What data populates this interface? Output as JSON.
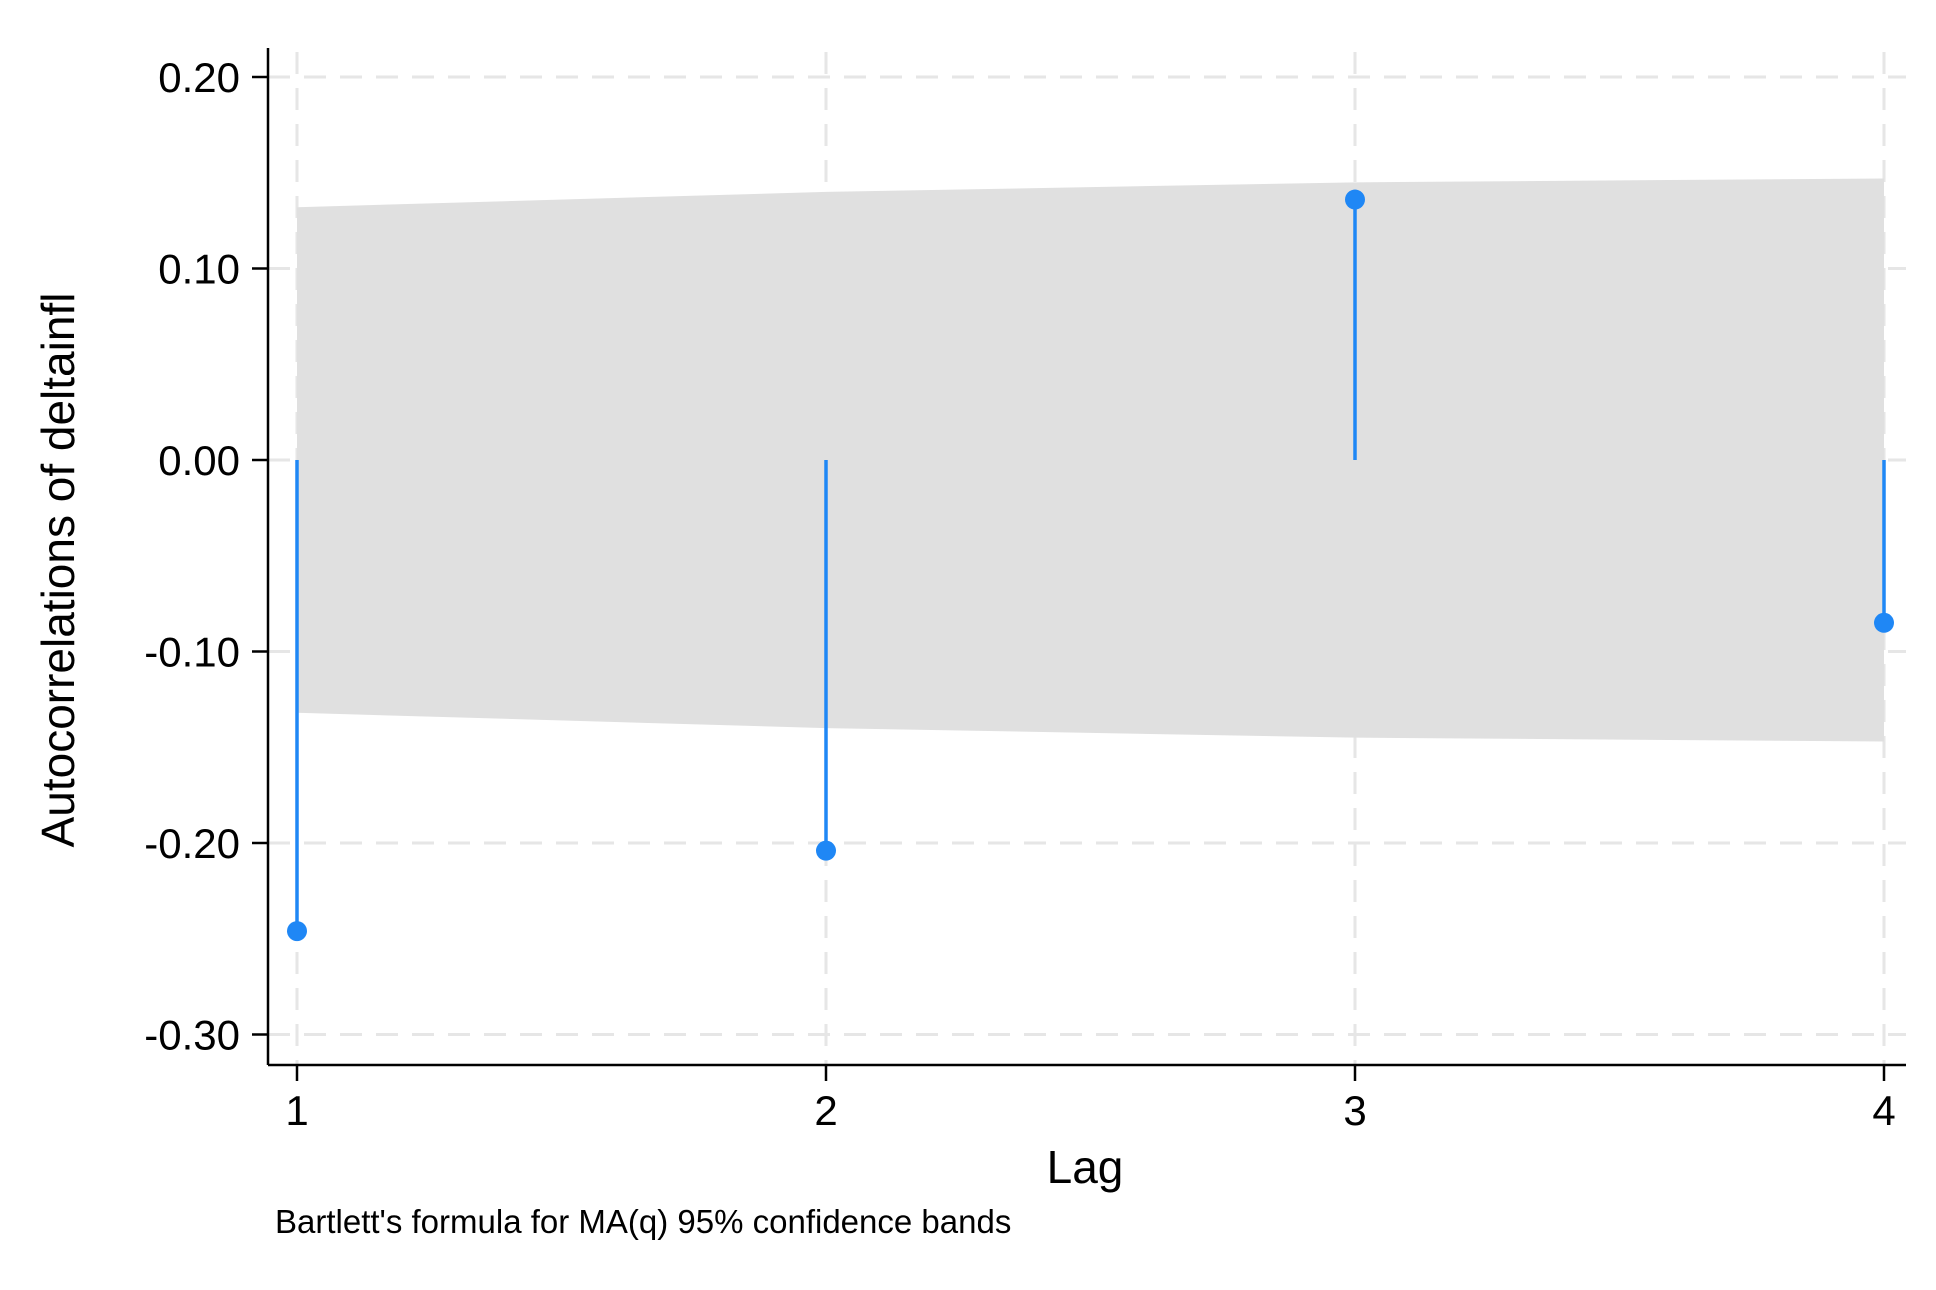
{
  "chart_data": {
    "type": "scatter",
    "style": "stem",
    "xlabel": "Lag",
    "ylabel": "Autocorrelations of deltainfl",
    "note": "Bartlett's formula for MA(q) 95% confidence bands",
    "xlim": [
      1,
      4
    ],
    "ylim": [
      -0.315,
      0.215
    ],
    "x_ticks": [
      1,
      2,
      3,
      4
    ],
    "y_ticks": [
      0.2,
      0.1,
      0.0,
      -0.1,
      -0.2,
      -0.3
    ],
    "y_tick_labels": [
      "0.20",
      "0.10",
      "0.00",
      "-0.10",
      "-0.20",
      "-0.30"
    ],
    "grid": true,
    "series": [
      {
        "x": [
          1,
          2,
          3,
          4
        ],
        "values": [
          -0.246,
          -0.204,
          0.136,
          -0.085
        ]
      }
    ],
    "confidence_band": {
      "x": [
        1,
        2,
        3,
        4
      ],
      "upper": [
        0.132,
        0.14,
        0.145,
        0.147
      ],
      "lower": [
        -0.132,
        -0.14,
        -0.145,
        -0.147
      ]
    },
    "colors": {
      "band": "#e0e0e0",
      "series": "#1f87f5",
      "grid": "#e6e6e6",
      "axis": "#000000"
    }
  }
}
